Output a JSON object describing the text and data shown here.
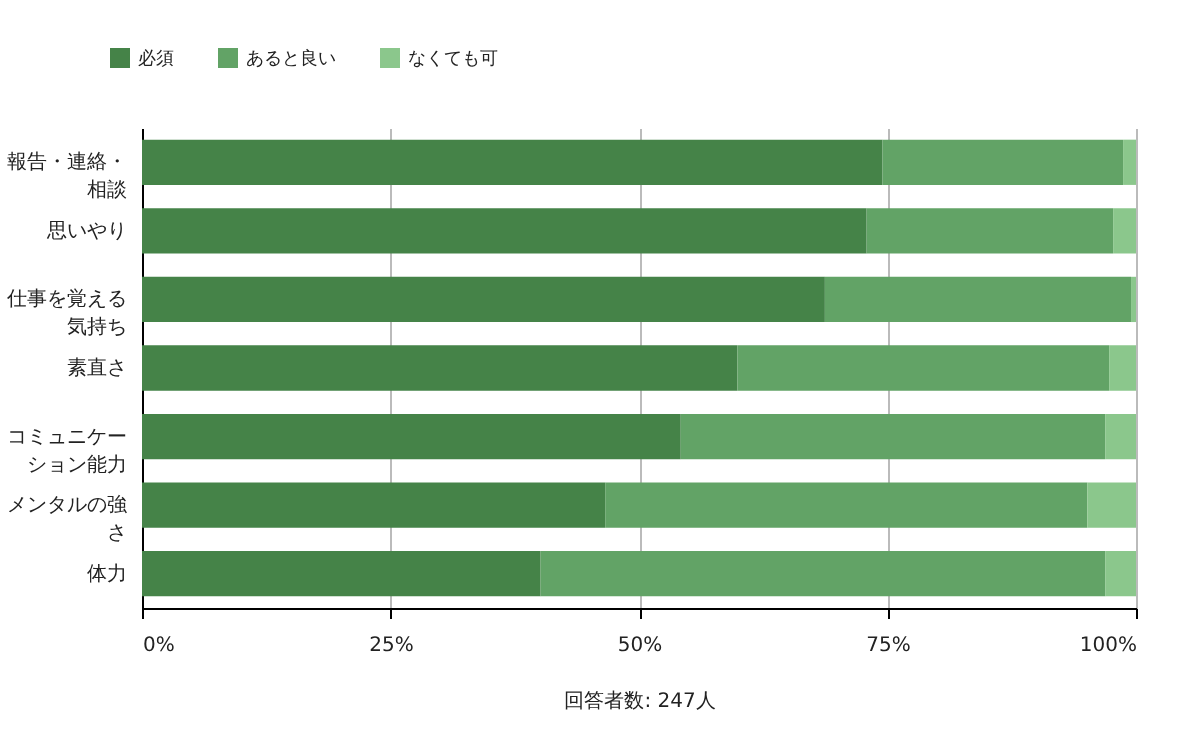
{
  "chart_data": {
    "type": "bar",
    "orientation": "horizontal",
    "stacked": true,
    "categories": [
      "報告・連絡・相談",
      "思いやり",
      "仕事を覚える気持ち",
      "素直さ",
      "コミュニケーション能力",
      "メンタルの強さ",
      "体力"
    ],
    "series": [
      {
        "name": "必須",
        "color": "#458348",
        "values": [
          74.5,
          72.9,
          68.7,
          59.9,
          54.2,
          46.6,
          40.1
        ]
      },
      {
        "name": "あると良い",
        "color": "#62a366",
        "values": [
          24.2,
          24.8,
          30.8,
          37.4,
          42.7,
          48.5,
          56.8
        ]
      },
      {
        "name": "なくても可",
        "color": "#8bc78c",
        "values": [
          1.3,
          2.3,
          0.5,
          2.7,
          3.1,
          4.9,
          3.1
        ]
      }
    ],
    "xlim": [
      0,
      100
    ],
    "xticks": [
      {
        "value": 0,
        "label": "0%"
      },
      {
        "value": 25,
        "label": "25%"
      },
      {
        "value": 50,
        "label": "50%"
      },
      {
        "value": 75,
        "label": "75%"
      },
      {
        "value": 100,
        "label": "100%"
      }
    ],
    "xlabel": "回答者数: 247人",
    "grid": "x",
    "legend": "top left"
  }
}
